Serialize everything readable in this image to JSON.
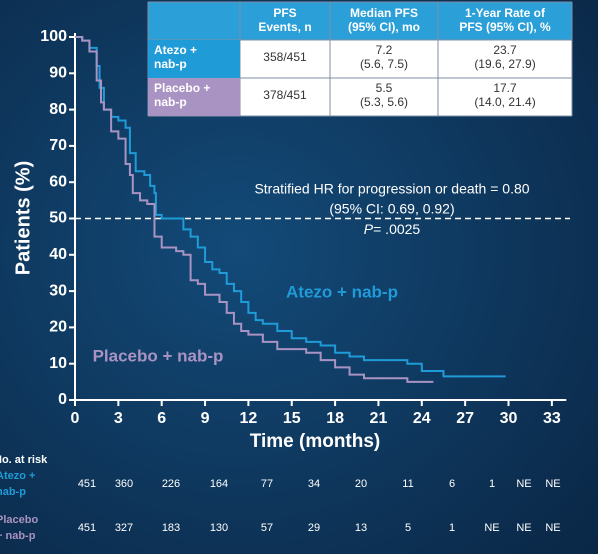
{
  "chart_data": {
    "type": "step",
    "ylabel": "Patients (%)",
    "xlabel": "Time (months)",
    "xlim": [
      0,
      34
    ],
    "xticks": [
      0,
      3,
      6,
      9,
      12,
      15,
      18,
      21,
      24,
      27,
      30,
      33
    ],
    "ylim": [
      0,
      100
    ],
    "yticks": [
      0,
      10,
      20,
      30,
      40,
      50,
      60,
      70,
      80,
      90,
      100
    ],
    "reference_line": 50,
    "series": [
      {
        "name": "Atezo + nab-p",
        "color": "#1f9bd7",
        "x": [
          0,
          0.5,
          1,
          1.5,
          1.7,
          2,
          2.5,
          3,
          3.5,
          3.8,
          4.2,
          4.8,
          5.2,
          5.5,
          5.6,
          6,
          7,
          7.5,
          8,
          8.5,
          9,
          9.5,
          10,
          10.5,
          11,
          11.5,
          12,
          12.5,
          13,
          14,
          15,
          16,
          17,
          18,
          19,
          20,
          22,
          23,
          24,
          25,
          25.5,
          29.8
        ],
        "values": [
          100,
          99,
          97,
          92,
          86,
          80,
          78,
          77,
          75,
          68,
          63,
          62,
          59,
          57,
          51,
          50,
          50,
          47,
          45,
          42,
          38,
          36,
          35,
          32,
          30,
          27,
          24,
          22,
          21,
          19,
          17,
          16,
          15,
          13,
          12,
          11,
          11,
          10,
          8,
          8,
          6.5,
          6.5
        ]
      },
      {
        "name": "Placebo + nab-p",
        "color": "#a993c2",
        "x": [
          0,
          0.5,
          1,
          1.5,
          1.8,
          2,
          2.5,
          3,
          3.5,
          3.8,
          4,
          4.5,
          5,
          5.5,
          6,
          7,
          7.5,
          8,
          8.5,
          9,
          10,
          10.5,
          11,
          11.5,
          12,
          13,
          14,
          16,
          17,
          18,
          19,
          20,
          22,
          23,
          24.8
        ],
        "values": [
          100,
          99,
          96,
          88,
          82,
          80,
          74,
          72,
          65,
          62,
          57,
          55,
          54,
          45,
          42,
          41,
          40,
          33,
          32,
          29,
          27,
          24,
          21,
          19,
          18,
          16,
          14,
          13,
          11,
          9,
          7,
          6,
          6,
          5,
          5
        ]
      }
    ],
    "annotation": [
      "Stratified HR for progression or death = 0.80",
      "(95% CI: 0.69, 0.92)",
      {
        "italic": "P",
        "text": "= .0025"
      }
    ]
  },
  "table": {
    "header": [
      [
        "PFS",
        "Events, n"
      ],
      [
        "Median PFS",
        "(95% CI), mo"
      ],
      [
        "1-Year Rate of",
        "PFS (95% CI), %"
      ]
    ],
    "rows": [
      {
        "label": [
          "Atezo +",
          "nab-p"
        ],
        "cells": [
          [
            "358/451"
          ],
          [
            "7.2",
            "(5.6, 7.5)"
          ],
          [
            "23.7",
            "(19.6, 27.9)"
          ]
        ]
      },
      {
        "label": [
          "Placebo +",
          "nab-p"
        ],
        "cells": [
          [
            "378/451"
          ],
          [
            "5.5",
            "(5.3, 5.6)"
          ],
          [
            "17.7",
            "(14.0, 21.4)"
          ]
        ]
      }
    ]
  },
  "risk_table": {
    "title": "No. at risk",
    "rows": [
      {
        "label": [
          "Atezo +",
          "nab-p"
        ],
        "values": [
          "451",
          "360",
          "226",
          "164",
          "77",
          "34",
          "20",
          "11",
          "6",
          "1",
          "NE",
          "NE"
        ]
      },
      {
        "label": [
          "Placebo",
          "+ nab-p"
        ],
        "values": [
          "451",
          "327",
          "183",
          "130",
          "57",
          "29",
          "13",
          "5",
          "1",
          "NE",
          "NE",
          "NE"
        ]
      }
    ]
  }
}
